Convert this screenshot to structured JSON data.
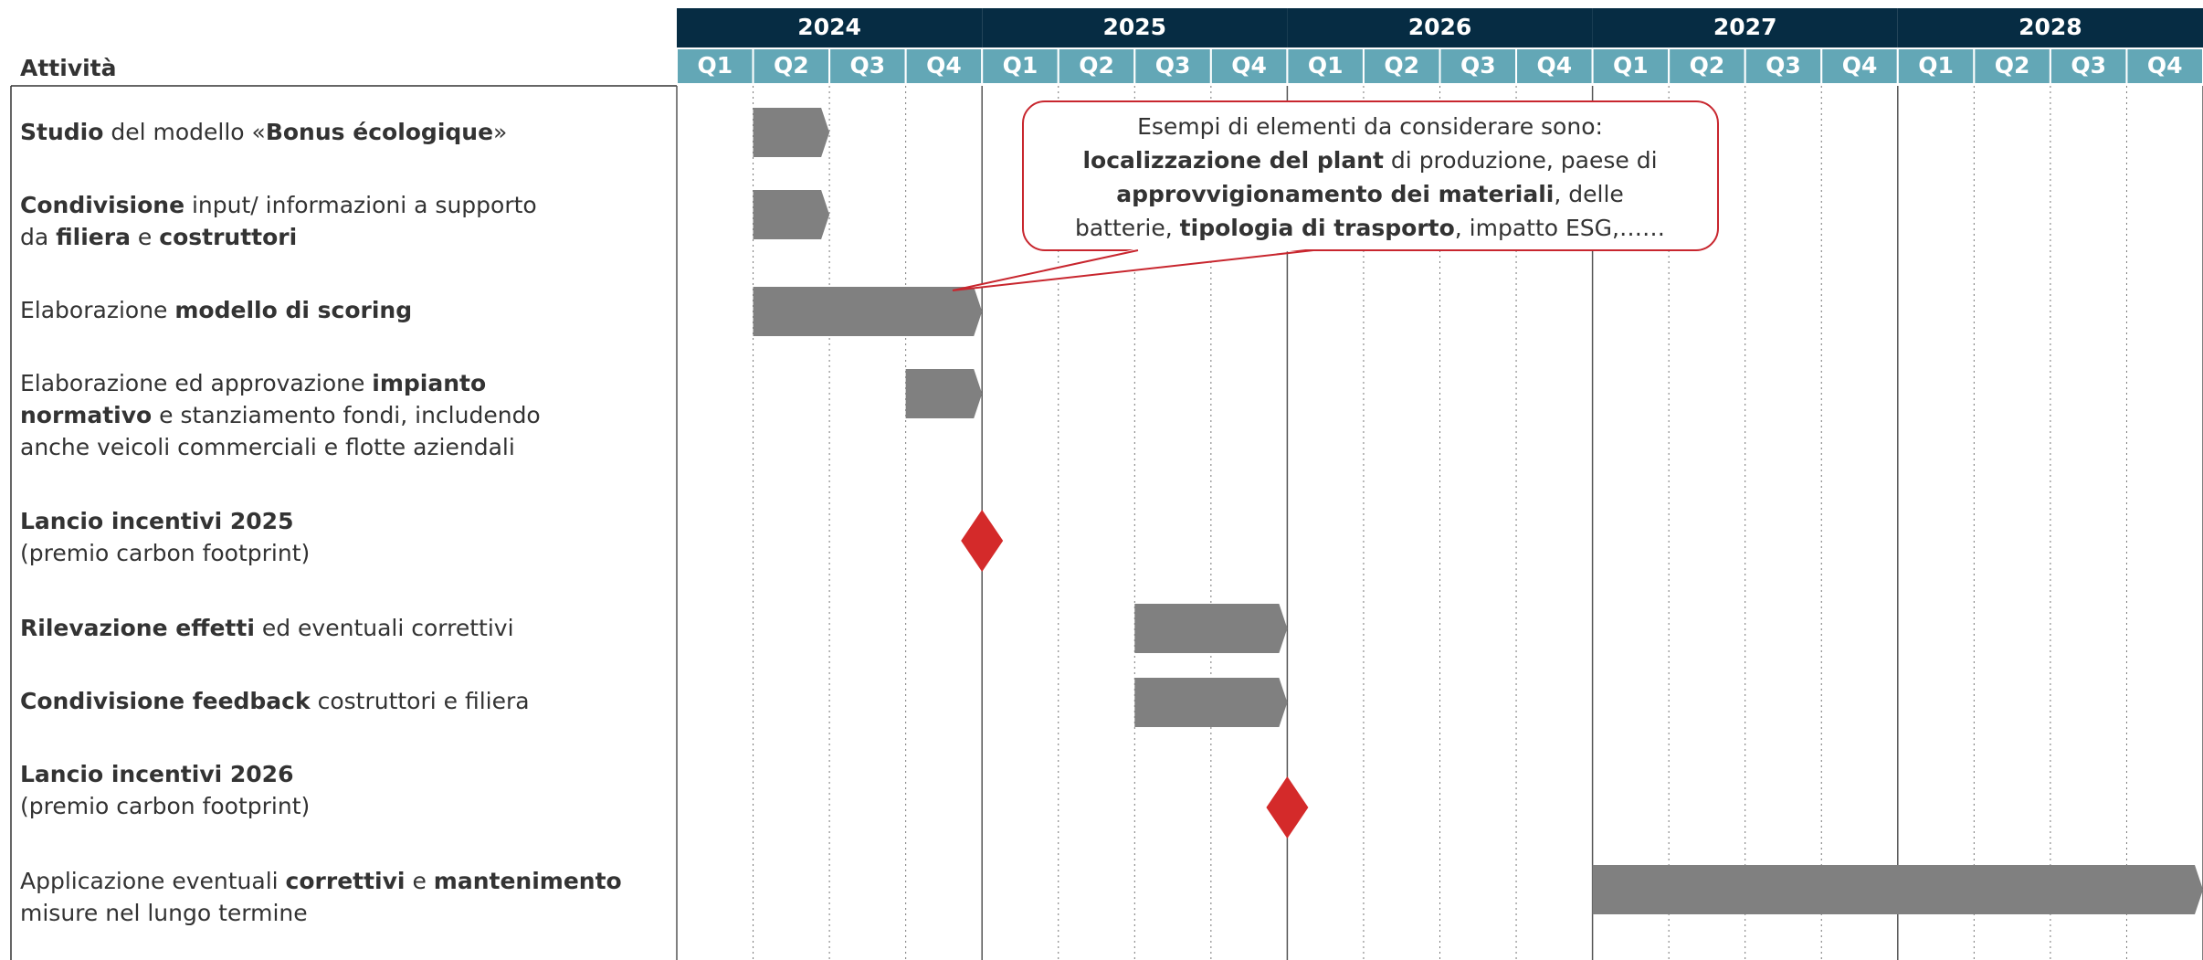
{
  "chart_data": {
    "type": "gantt",
    "activity_header": "Attività",
    "years": [
      "2024",
      "2025",
      "2026",
      "2027",
      "2028"
    ],
    "quarters": [
      "Q1",
      "Q2",
      "Q3",
      "Q4",
      "Q1",
      "Q2",
      "Q3",
      "Q4",
      "Q1",
      "Q2",
      "Q3",
      "Q4",
      "Q1",
      "Q2",
      "Q3",
      "Q4",
      "Q1",
      "Q2",
      "Q3",
      "Q4"
    ],
    "bar_color": "#808080",
    "milestone_color": "#d42a2a",
    "tasks": [
      {
        "lines": [
          [
            {
              "text": "Studio",
              "bold": true
            },
            {
              "text": " del modello «"
            },
            {
              "text": "Bonus écologique",
              "bold": true
            },
            {
              "text": "»"
            }
          ]
        ],
        "start": 1,
        "end": 2
      },
      {
        "lines": [
          [
            {
              "text": "Condivisione",
              "bold": true
            },
            {
              "text": " input/ informazioni a supporto"
            }
          ],
          [
            {
              "text": "da "
            },
            {
              "text": "filiera",
              "bold": true
            },
            {
              "text": " e "
            },
            {
              "text": "costruttori",
              "bold": true
            }
          ]
        ],
        "start": 1,
        "end": 2
      },
      {
        "lines": [
          [
            {
              "text": "Elaborazione "
            },
            {
              "text": "modello di scoring",
              "bold": true
            }
          ]
        ],
        "start": 1,
        "end": 4
      },
      {
        "lines": [
          [
            {
              "text": "Elaborazione ed approvazione "
            },
            {
              "text": "impianto",
              "bold": true
            }
          ],
          [
            {
              "text": "normativo",
              "bold": true
            },
            {
              "text": " e stanziamento fondi, includendo"
            }
          ],
          [
            {
              "text": "anche veicoli commerciali e flotte aziendali"
            }
          ]
        ],
        "start": 3,
        "end": 4
      },
      {
        "lines": [
          [
            {
              "text": "Lancio incentivi 2025",
              "bold": true
            }
          ],
          [
            {
              "text": "(premio carbon footprint)"
            }
          ]
        ],
        "milestone": 4
      },
      {
        "lines": [
          [
            {
              "text": "Rilevazione effetti",
              "bold": true
            },
            {
              "text": " ed eventuali correttivi"
            }
          ]
        ],
        "start": 6,
        "end": 8
      },
      {
        "lines": [
          [
            {
              "text": "Condivisione feedback",
              "bold": true
            },
            {
              "text": " costruttori e filiera"
            }
          ]
        ],
        "start": 6,
        "end": 8
      },
      {
        "lines": [
          [
            {
              "text": "Lancio incentivi 2026",
              "bold": true
            }
          ],
          [
            {
              "text": "(premio carbon footprint)"
            }
          ]
        ],
        "milestone": 8
      },
      {
        "lines": [
          [
            {
              "text": "Applicazione eventuali "
            },
            {
              "text": "correttivi",
              "bold": true
            },
            {
              "text": " e "
            },
            {
              "text": "mantenimento",
              "bold": true
            }
          ],
          [
            {
              "text": "misure nel lungo termine"
            }
          ]
        ],
        "start": 12,
        "end": 20
      }
    ],
    "callout": {
      "lines": [
        [
          {
            "text": "Esempi di elementi da considerare sono:"
          }
        ],
        [
          {
            "text": "localizzazione del plant",
            "bold": true
          },
          {
            "text": " di produzione, paese di"
          }
        ],
        [
          {
            "text": "approvvigionamento dei materiali",
            "bold": true
          },
          {
            "text": ", delle"
          }
        ],
        [
          {
            "text": "batterie, "
          },
          {
            "text": "tipologia di trasporto",
            "bold": true
          },
          {
            "text": ", impatto ESG,……"
          }
        ]
      ]
    }
  }
}
